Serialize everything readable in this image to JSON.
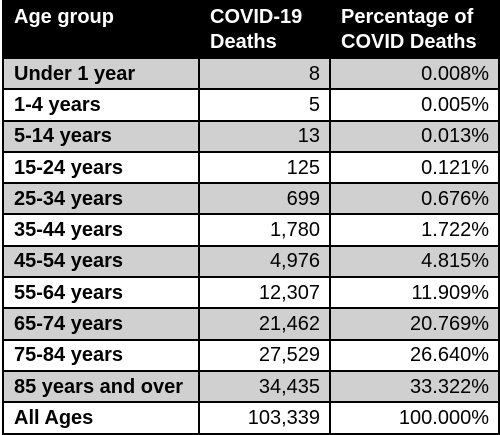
{
  "table": {
    "headers": [
      [
        "Age group"
      ],
      [
        "COVID-19",
        "Deaths"
      ],
      [
        "Percentage of",
        "COVID Deaths"
      ]
    ],
    "rows": [
      {
        "age_group": "Under 1 year",
        "deaths": "8",
        "percentage": "0.008%"
      },
      {
        "age_group": "1-4 years",
        "deaths": "5",
        "percentage": "0.005%"
      },
      {
        "age_group": "5-14 years",
        "deaths": "13",
        "percentage": "0.013%"
      },
      {
        "age_group": "15-24 years",
        "deaths": "125",
        "percentage": "0.121%"
      },
      {
        "age_group": "25-34 years",
        "deaths": "699",
        "percentage": "0.676%"
      },
      {
        "age_group": "35-44 years",
        "deaths": "1,780",
        "percentage": "1.722%"
      },
      {
        "age_group": "45-54 years",
        "deaths": "4,976",
        "percentage": "4.815%"
      },
      {
        "age_group": "55-64 years",
        "deaths": "12,307",
        "percentage": "11.909%"
      },
      {
        "age_group": "65-74 years",
        "deaths": "21,462",
        "percentage": "20.769%"
      },
      {
        "age_group": "75-84 years",
        "deaths": "27,529",
        "percentage": "26.640%"
      },
      {
        "age_group": "85 years and over",
        "deaths": "34,435",
        "percentage": "33.322%"
      },
      {
        "age_group": "All Ages",
        "deaths": "103,339",
        "percentage": "100.000%"
      }
    ]
  },
  "colors": {
    "header_background": "#000000",
    "header_text": "#ffffff",
    "shaded_row": "#d0d0d0",
    "plain_row": "#ffffff",
    "border": "#000000"
  }
}
